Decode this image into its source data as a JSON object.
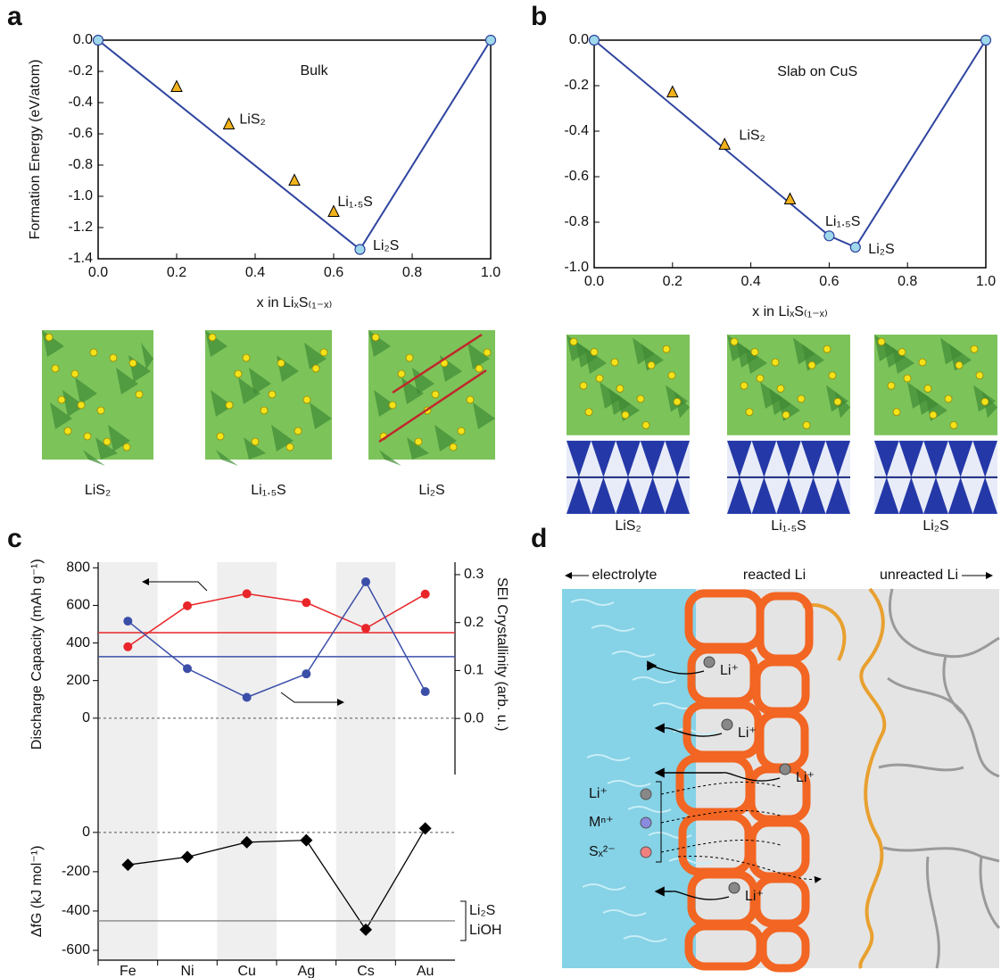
{
  "panel_labels": [
    "a",
    "b",
    "c",
    "d"
  ],
  "chart_data": [
    {
      "type": "hull",
      "title": "Bulk",
      "annotations": [
        "LiS₂",
        "Li₁.₅S",
        "Li₂S"
      ],
      "xlabel": "x in LiₓS₍₁₋ₓ₎",
      "ylabel": "Formation Energy (eV/atom)",
      "xlim": [
        0,
        1
      ],
      "ylim": [
        -1.4,
        0
      ],
      "xticks": [
        {
          "value": 0,
          "label": "0.0"
        },
        0.2,
        0.4,
        0.6,
        0.8,
        {
          "value": 1,
          "label": "1.0"
        }
      ],
      "yticks": [
        {
          "value": 0,
          "label": "0.0"
        },
        -0.2,
        -0.4,
        -0.6,
        -0.8,
        {
          "value": -1,
          "label": "-1.0"
        },
        -1.2,
        -1.4
      ],
      "hull": {
        "x": [
          0,
          0.667,
          1
        ],
        "y": [
          0,
          -1.34,
          0
        ],
        "color": "#2f44a0",
        "marker_color": "#9fd8ea"
      },
      "points": {
        "x": [
          0.2,
          0.333,
          0.5,
          0.6
        ],
        "y": [
          -0.3,
          -0.54,
          -0.9,
          -1.1
        ],
        "color": "#f2b21b"
      }
    },
    {
      "type": "hull",
      "title": "Slab on CuS",
      "annotations": [
        "LiS₂",
        "Li₁.₅S",
        "Li₂S"
      ],
      "xlabel": "x in LiₓS₍₁₋ₓ₎",
      "xlim": [
        0,
        1
      ],
      "ylim": [
        -1,
        0
      ],
      "xticks": [
        {
          "value": 0,
          "label": "0.0"
        },
        0.2,
        0.4,
        0.6,
        0.8,
        {
          "value": 1,
          "label": "1.0"
        }
      ],
      "yticks": [
        {
          "value": 0,
          "label": "0.0"
        },
        -0.2,
        -0.4,
        -0.6,
        -0.8,
        {
          "value": -1,
          "label": "-1.0"
        }
      ],
      "hull": {
        "x": [
          0,
          0.6,
          0.667,
          1
        ],
        "y": [
          0,
          -0.86,
          -0.91,
          0
        ],
        "color": "#2f44a0",
        "marker_color": "#9fd8ea"
      },
      "points": {
        "x": [
          0.2,
          0.333,
          0.5
        ],
        "y": [
          -0.23,
          -0.46,
          -0.7
        ],
        "color": "#f2b21b"
      }
    },
    {
      "type": "line",
      "ylabel": "Discharge Capacity (mAh g⁻¹)",
      "y2label": "SEI Crystallinity (arb. u.)",
      "ylim": [
        -300,
        830
      ],
      "yticks": [
        0,
        200,
        400,
        600,
        800
      ],
      "y2lim": [
        -0.117,
        0.326
      ],
      "y2ticks": [
        {
          "value": 0,
          "label": "0.0"
        },
        0.1,
        0.2,
        0.3
      ],
      "series": [
        {
          "color": "#e8262a",
          "values": [
            380,
            598,
            662,
            615,
            478,
            660
          ],
          "hline": 455
        },
        {
          "color": "#3b4fa8",
          "axis": "y2",
          "values": [
            0.203,
            0.104,
            0.044,
            0.093,
            0.285,
            0.056
          ],
          "hline": 0.129
        }
      ]
    },
    {
      "type": "line",
      "categories": [
        "Fe",
        "Ni",
        "Cu",
        "Ag",
        "Cs",
        "Au"
      ],
      "ylabel": "ΔfG (kJ mol⁻¹)",
      "ylim": [
        -650,
        90
      ],
      "yticks": [
        -600,
        -400,
        -200,
        0
      ],
      "series": [
        {
          "color": "#000000",
          "values": [
            -165,
            -125,
            -50,
            -40,
            -495,
            20
          ]
        }
      ],
      "reference_line": {
        "value": -450,
        "color": "#888888",
        "labels": [
          "Li₂S",
          "LiOH"
        ]
      }
    }
  ],
  "structures": {
    "a": [
      "LiS₂",
      "Li₁.₅S",
      "Li₂S"
    ],
    "b": [
      "LiS₂",
      "Li₁.₅S",
      "Li₂S"
    ]
  },
  "diagram": {
    "headers": [
      "electrolyte",
      "reacted Li",
      "unreacted Li"
    ],
    "ion_labels": [
      "Li⁺",
      "Li⁺",
      "Li⁺",
      "Li⁺"
    ],
    "species": [
      "Li⁺",
      "Mⁿ⁺",
      "Sₓ²⁻"
    ]
  }
}
